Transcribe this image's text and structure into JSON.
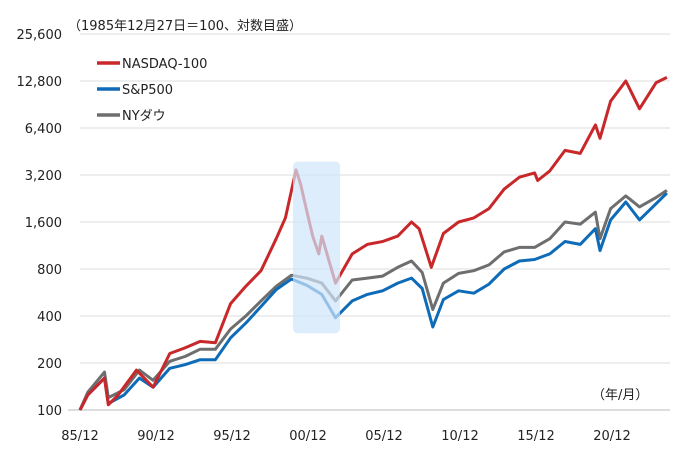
{
  "chart_data": {
    "type": "line",
    "subtitle": "（1985年12月27日＝100、対数目盛）",
    "unit_label": "（年/月）",
    "y_scale": "log2",
    "ylim": [
      100,
      25600
    ],
    "xlim": [
      1985.99,
      2024.7
    ],
    "y_ticks": [
      100,
      200,
      400,
      800,
      1600,
      3200,
      6400,
      12800,
      25600
    ],
    "y_tick_labels": [
      "100",
      "200",
      "400",
      "800",
      "1,600",
      "3,200",
      "6,400",
      "12,800",
      "25,600"
    ],
    "x_ticks": [
      1985.99,
      1990.99,
      1995.99,
      2000.99,
      2005.99,
      2010.99,
      2015.99,
      2020.99
    ],
    "x_tick_labels": [
      "85/12",
      "90/12",
      "95/12",
      "00/12",
      "05/12",
      "10/12",
      "15/12",
      "20/12"
    ],
    "grid": "horizontal",
    "legend_placement": "top-left",
    "highlight": {
      "x_from": 2000.0,
      "x_to": 2003.1,
      "y_from": 310,
      "y_to": 3900,
      "color": "#cfe6fb"
    },
    "series": [
      {
        "name": "NASDAQ-100",
        "color": "#c8282a",
        "points": [
          [
            1985.99,
            100
          ],
          [
            1986.5,
            125
          ],
          [
            1987.6,
            160
          ],
          [
            1987.85,
            108
          ],
          [
            1988.5,
            125
          ],
          [
            1989.7,
            180
          ],
          [
            1990.8,
            140
          ],
          [
            1991.9,
            230
          ],
          [
            1992.9,
            250
          ],
          [
            1993.9,
            275
          ],
          [
            1994.9,
            270
          ],
          [
            1995.9,
            480
          ],
          [
            1996.9,
            620
          ],
          [
            1997.9,
            780
          ],
          [
            1998.9,
            1250
          ],
          [
            1999.5,
            1700
          ],
          [
            2000.2,
            3450
          ],
          [
            2000.5,
            2800
          ],
          [
            2000.9,
            1900
          ],
          [
            2001.3,
            1300
          ],
          [
            2001.7,
            1000
          ],
          [
            2001.9,
            1300
          ],
          [
            2002.8,
            650
          ],
          [
            2003.9,
            1000
          ],
          [
            2004.9,
            1150
          ],
          [
            2005.9,
            1200
          ],
          [
            2006.9,
            1300
          ],
          [
            2007.8,
            1600
          ],
          [
            2008.3,
            1450
          ],
          [
            2009.1,
            820
          ],
          [
            2009.9,
            1350
          ],
          [
            2010.9,
            1600
          ],
          [
            2011.9,
            1700
          ],
          [
            2012.9,
            1950
          ],
          [
            2013.9,
            2600
          ],
          [
            2014.9,
            3100
          ],
          [
            2015.9,
            3300
          ],
          [
            2016.1,
            2950
          ],
          [
            2016.9,
            3400
          ],
          [
            2017.9,
            4600
          ],
          [
            2018.9,
            4400
          ],
          [
            2019.9,
            6700
          ],
          [
            2020.2,
            5500
          ],
          [
            2020.9,
            9500
          ],
          [
            2021.9,
            12800
          ],
          [
            2022.8,
            8500
          ],
          [
            2023.9,
            12500
          ],
          [
            2024.6,
            13500
          ]
        ]
      },
      {
        "name": "S&P500",
        "color": "#0e6bb8",
        "points": [
          [
            1985.99,
            100
          ],
          [
            1986.5,
            125
          ],
          [
            1987.6,
            160
          ],
          [
            1987.85,
            110
          ],
          [
            1988.9,
            125
          ],
          [
            1989.9,
            160
          ],
          [
            1990.8,
            140
          ],
          [
            1991.9,
            185
          ],
          [
            1992.9,
            195
          ],
          [
            1993.9,
            210
          ],
          [
            1994.9,
            210
          ],
          [
            1995.9,
            290
          ],
          [
            1996.9,
            360
          ],
          [
            1997.9,
            460
          ],
          [
            1998.9,
            590
          ],
          [
            1999.9,
            690
          ],
          [
            2000.9,
            630
          ],
          [
            2001.9,
            550
          ],
          [
            2002.8,
            390
          ],
          [
            2003.9,
            500
          ],
          [
            2004.9,
            550
          ],
          [
            2005.9,
            580
          ],
          [
            2006.9,
            650
          ],
          [
            2007.8,
            700
          ],
          [
            2008.5,
            600
          ],
          [
            2009.2,
            340
          ],
          [
            2009.9,
            510
          ],
          [
            2010.9,
            580
          ],
          [
            2011.9,
            560
          ],
          [
            2012.9,
            640
          ],
          [
            2013.9,
            800
          ],
          [
            2014.9,
            900
          ],
          [
            2015.9,
            920
          ],
          [
            2016.9,
            1000
          ],
          [
            2017.9,
            1200
          ],
          [
            2018.9,
            1150
          ],
          [
            2019.9,
            1450
          ],
          [
            2020.2,
            1050
          ],
          [
            2020.9,
            1650
          ],
          [
            2021.9,
            2150
          ],
          [
            2022.8,
            1650
          ],
          [
            2023.9,
            2100
          ],
          [
            2024.6,
            2450
          ]
        ]
      },
      {
        "name": "NYダウ",
        "color": "#6e6e6e",
        "points": [
          [
            1985.99,
            100
          ],
          [
            1986.5,
            130
          ],
          [
            1987.6,
            175
          ],
          [
            1987.85,
            120
          ],
          [
            1988.9,
            135
          ],
          [
            1989.9,
            180
          ],
          [
            1990.8,
            155
          ],
          [
            1991.9,
            205
          ],
          [
            1992.9,
            220
          ],
          [
            1993.9,
            245
          ],
          [
            1994.9,
            245
          ],
          [
            1995.9,
            330
          ],
          [
            1996.9,
            400
          ],
          [
            1997.9,
            500
          ],
          [
            1998.9,
            620
          ],
          [
            1999.9,
            730
          ],
          [
            2000.9,
            700
          ],
          [
            2001.9,
            650
          ],
          [
            2002.8,
            500
          ],
          [
            2003.9,
            680
          ],
          [
            2004.9,
            700
          ],
          [
            2005.9,
            720
          ],
          [
            2006.9,
            820
          ],
          [
            2007.8,
            900
          ],
          [
            2008.5,
            760
          ],
          [
            2009.2,
            440
          ],
          [
            2009.9,
            650
          ],
          [
            2010.9,
            750
          ],
          [
            2011.9,
            780
          ],
          [
            2012.9,
            850
          ],
          [
            2013.9,
            1030
          ],
          [
            2014.9,
            1100
          ],
          [
            2015.9,
            1100
          ],
          [
            2016.9,
            1250
          ],
          [
            2017.9,
            1600
          ],
          [
            2018.9,
            1550
          ],
          [
            2019.9,
            1850
          ],
          [
            2020.2,
            1250
          ],
          [
            2020.9,
            1950
          ],
          [
            2021.9,
            2350
          ],
          [
            2022.8,
            2000
          ],
          [
            2023.9,
            2300
          ],
          [
            2024.6,
            2550
          ]
        ]
      }
    ]
  }
}
